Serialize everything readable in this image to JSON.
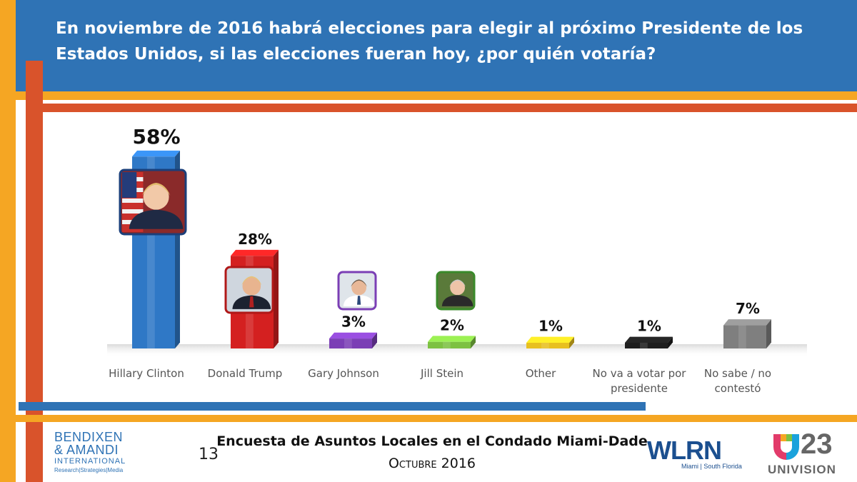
{
  "title": "En noviembre de 2016 habrá elecciones para elegir al próximo Presidente de los Estados Unidos, si las elecciones fueran hoy, ¿por quién votaría?",
  "footer": {
    "page_number": "13",
    "survey_title": "Encuesta de Asuntos Locales en el Condado Miami-Dade",
    "date": "Octubre 2016"
  },
  "logos": {
    "bendixen_line1": "BENDIXEN",
    "bendixen_line2": "& AMANDI",
    "bendixen_line3": "INTERNATIONAL",
    "bendixen_tagline": "Research|Strategies|Media",
    "wlrn": "WLRN",
    "wlrn_sub": "Miami | South Florida",
    "univision_channel": "23",
    "univision_name": "UNIVISION"
  },
  "colors": {
    "header_blue": "#2f73b5",
    "stripe_orange": "#f5a623",
    "stripe_red": "#d9532b"
  },
  "chart_data": {
    "type": "bar",
    "categories": [
      "Hillary Clinton",
      "Donald Trump",
      "Gary Johnson",
      "Jill Stein",
      "Other",
      "No va a votar por presidente",
      "No sabe / no contestó"
    ],
    "values": [
      58,
      28,
      3,
      2,
      1,
      1,
      7
    ],
    "value_labels": [
      "58%",
      "28%",
      "3%",
      "2%",
      "1%",
      "1%",
      "7%"
    ],
    "bar_colors": [
      "#2f78c6",
      "#d42020",
      "#7b3fb5",
      "#7dc142",
      "#e8c020",
      "#1e1e1e",
      "#7f7f7f"
    ],
    "portraits": [
      "clinton",
      "trump",
      "johnson",
      "stein",
      null,
      null,
      null
    ],
    "ylim": [
      0,
      60
    ],
    "grid": false,
    "legend": "none"
  }
}
